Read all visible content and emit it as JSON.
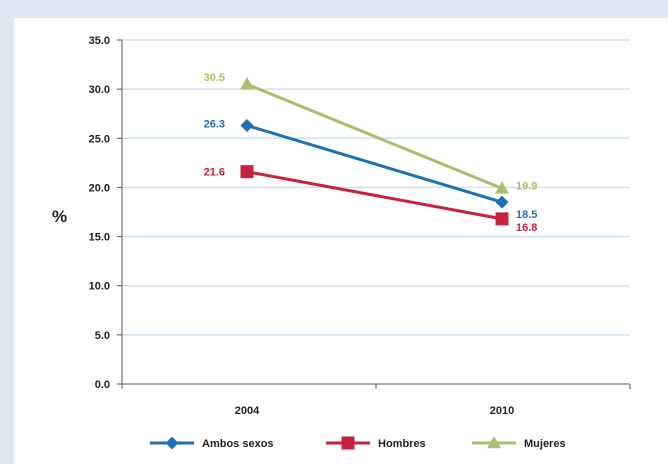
{
  "chart_data": {
    "type": "line",
    "categories": [
      "2004",
      "2010"
    ],
    "ylabel": "%",
    "ylim": [
      0,
      35
    ],
    "yticks": [
      "35.0",
      "30.0",
      "25.0",
      "20.0",
      "15.0",
      "10.0",
      "5.0",
      "0.0"
    ],
    "grid": true,
    "legend_position": "bottom",
    "series": [
      {
        "name": "Ambos sexos",
        "values": [
          26.3,
          18.5
        ],
        "labels": [
          "26.3",
          "18.5"
        ],
        "color": "#1f6fb5",
        "marker": "diamond"
      },
      {
        "name": "Hombres",
        "values": [
          21.6,
          16.8
        ],
        "labels": [
          "21.6",
          "16.8"
        ],
        "color": "#c8203f",
        "marker": "square"
      },
      {
        "name": "Mujeres",
        "values": [
          30.5,
          19.9
        ],
        "labels": [
          "30.5",
          "19.9"
        ],
        "color": "#a7c06b",
        "marker": "triangle"
      }
    ]
  }
}
